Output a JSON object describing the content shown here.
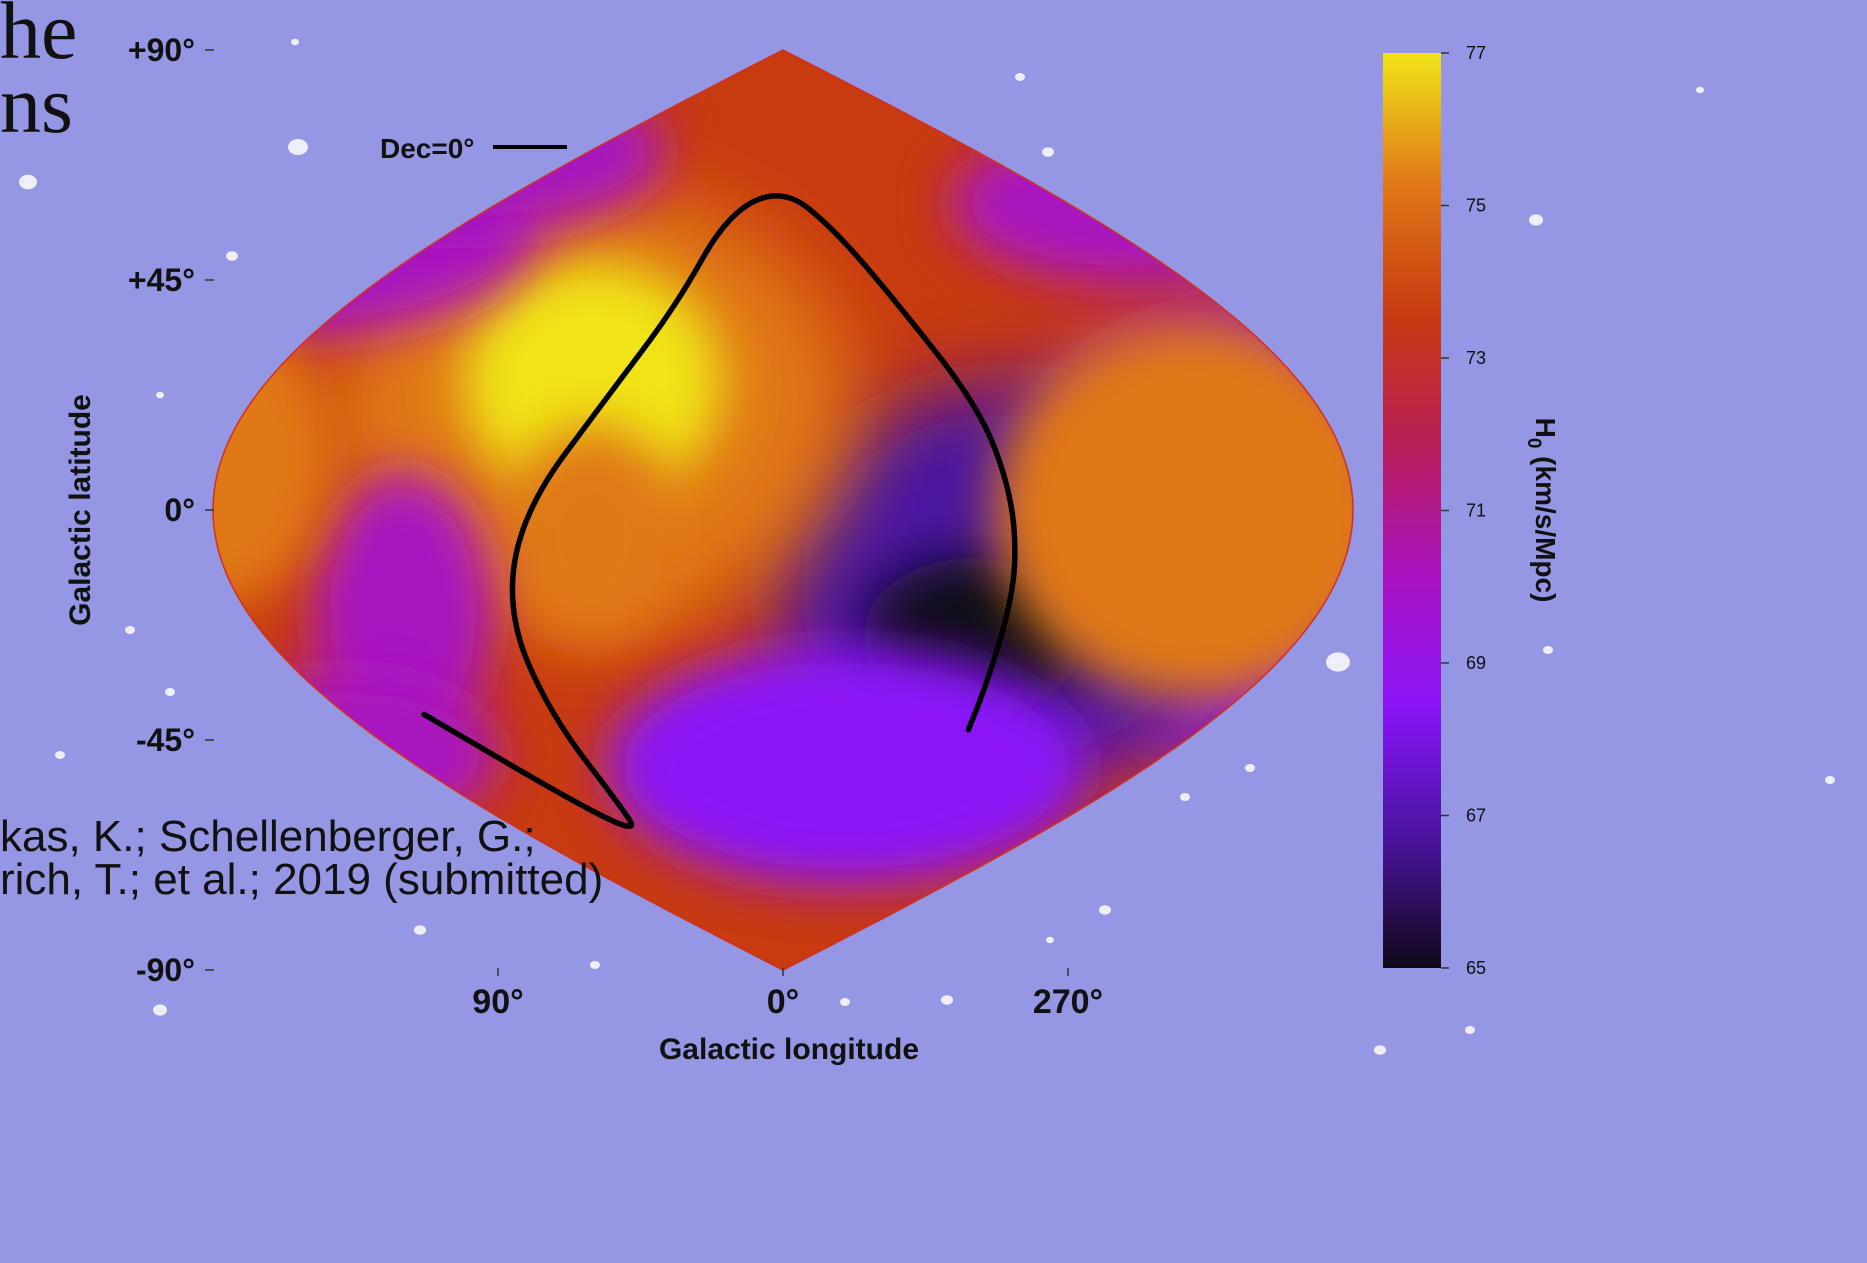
{
  "slide": {
    "title_fragments": [
      "he",
      "ns"
    ],
    "citation_lines": [
      "kas, K.; Schellenberger, G.;",
      "rich, T.; et al.; 2019 (submitted)"
    ]
  },
  "chart_data": {
    "type": "heatmap",
    "projection": "sinusoidal all-sky (Galactic coordinates)",
    "title": "",
    "xlabel": "Galactic longitude",
    "ylabel": "Galactic latitude",
    "x_tick_labels": [
      "90°",
      "0°",
      "270°"
    ],
    "y_tick_labels": [
      "+90°",
      "+45°",
      "0°",
      "-45°",
      "-90°"
    ],
    "xlim": [
      360,
      0
    ],
    "ylim": [
      -90,
      90
    ],
    "colorbar": {
      "label": "H0 (km/s/Mpc)",
      "label_main": "H",
      "label_sub": "0",
      "label_rest": " (km/s/Mpc)",
      "range": [
        65,
        77
      ],
      "ticks": [
        "77",
        "75",
        "73",
        "71",
        "69",
        "67",
        "65"
      ],
      "colormap": [
        "#100818",
        "#4a14a0",
        "#8a14f8",
        "#a812c0",
        "#b81e58",
        "#c83a10",
        "#e07818",
        "#f0e418"
      ]
    },
    "features": [
      {
        "description": "maximum",
        "l": 60,
        "b": 25,
        "H0": 77
      },
      {
        "description": "minimum",
        "l": 300,
        "b": -25,
        "H0": 65
      }
    ],
    "overlay": {
      "label": "Dec=0°",
      "color": "#000000",
      "path_lb": [
        [
          148,
          -40
        ],
        [
          120,
          -58
        ],
        [
          102,
          -63
        ],
        [
          97,
          -59
        ],
        [
          96,
          -40
        ],
        [
          93,
          -20
        ],
        [
          82,
          0
        ],
        [
          60,
          22
        ],
        [
          44,
          40
        ],
        [
          33,
          58
        ],
        [
          0,
          63
        ],
        [
          -28,
          55
        ],
        [
          -48,
          40
        ],
        [
          -66,
          20
        ],
        [
          -72,
          4
        ],
        [
          -75,
          -10
        ],
        [
          -76,
          -22
        ],
        [
          -78,
          -36
        ],
        [
          -80,
          -43
        ]
      ]
    },
    "grid": false
  }
}
